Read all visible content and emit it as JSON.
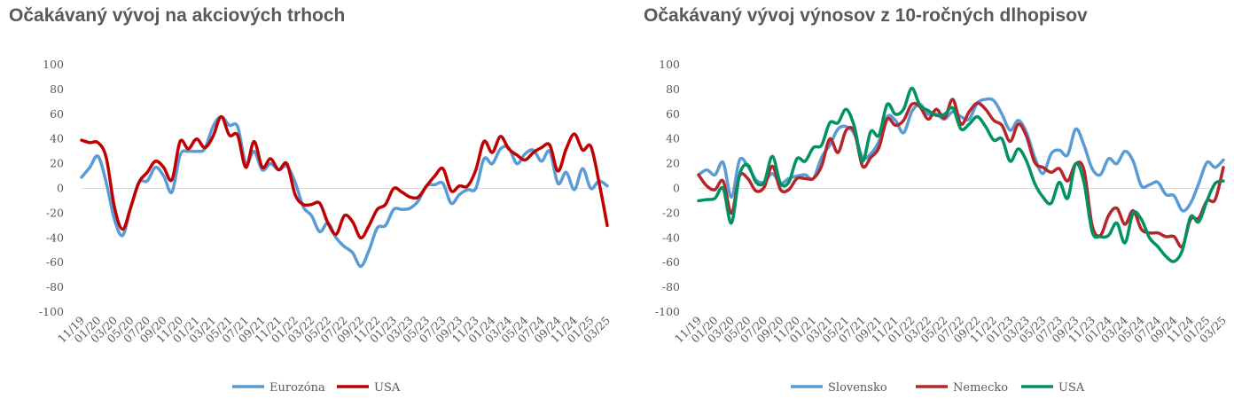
{
  "chart_data": [
    {
      "type": "line",
      "title": "Očakávaný vývoj na akciových trhoch",
      "ylim": [
        -100,
        100
      ],
      "yticks": [
        100,
        80,
        60,
        40,
        20,
        0,
        -20,
        -40,
        -60,
        -80,
        -100
      ],
      "grid": false,
      "legend": "bottom",
      "xtick_labels": [
        "11/19",
        "01/20",
        "03/20",
        "05/20",
        "07/20",
        "09/20",
        "11/20",
        "01/21",
        "03/21",
        "05/21",
        "07/21",
        "09/21",
        "11/21",
        "01/22",
        "03/22",
        "05/22",
        "07/22",
        "09/22",
        "11/22",
        "01/23",
        "03/23",
        "05/23",
        "07/23",
        "09/23",
        "11/23",
        "01/24",
        "03/24",
        "05/24",
        "07/24",
        "09/24",
        "11/24",
        "01/25",
        "03/25"
      ],
      "series": [
        {
          "name": "Eurozóna",
          "color": "#5B9BD5",
          "values": [
            9,
            17,
            26,
            5,
            -25,
            -38,
            -15,
            5,
            6,
            17,
            10,
            -3,
            27,
            30,
            30,
            32,
            50,
            58,
            51,
            50,
            20,
            30,
            15,
            20,
            15,
            18,
            5,
            -15,
            -22,
            -35,
            -28,
            -40,
            -47,
            -52,
            -63,
            -50,
            -32,
            -30,
            -17,
            -17,
            -16,
            -10,
            2,
            3,
            4,
            -12,
            -5,
            -1,
            0,
            24,
            20,
            32,
            33,
            20,
            28,
            31,
            22,
            30,
            4,
            13,
            -1,
            16,
            0,
            6,
            2
          ]
        },
        {
          "name": "USA",
          "color": "#C00000",
          "values": [
            39,
            37,
            37,
            25,
            -15,
            -33,
            -15,
            5,
            13,
            22,
            17,
            7,
            38,
            32,
            40,
            33,
            42,
            58,
            43,
            43,
            17,
            38,
            17,
            24,
            15,
            20,
            -5,
            -13,
            -13,
            -12,
            -28,
            -37,
            -22,
            -27,
            -40,
            -30,
            -17,
            -13,
            0,
            -3,
            -7,
            -7,
            2,
            10,
            16,
            -2,
            2,
            2,
            15,
            38,
            29,
            42,
            32,
            27,
            23,
            29,
            33,
            35,
            14,
            32,
            44,
            31,
            34,
            5,
            -30
          ]
        }
      ]
    },
    {
      "type": "line",
      "title": "Očakávaný vývoj výnosov z 10-ročných dlhopisov",
      "ylim": [
        -100,
        100
      ],
      "yticks": [
        100,
        80,
        60,
        40,
        20,
        0,
        -20,
        -40,
        -60,
        -80,
        -100
      ],
      "grid": false,
      "legend": "bottom",
      "xtick_labels": [
        "11/19",
        "01/20",
        "03/20",
        "05/20",
        "07/20",
        "09/20",
        "11/20",
        "01/21",
        "03/21",
        "05/21",
        "07/21",
        "09/21",
        "11/21",
        "01/22",
        "03/22",
        "05/22",
        "07/22",
        "09/22",
        "11/22",
        "01/23",
        "03/23",
        "05/23",
        "07/23",
        "09/23",
        "11/23",
        "01/24",
        "03/24",
        "05/24",
        "07/24",
        "09/24",
        "11/24",
        "01/25",
        "03/25"
      ],
      "series": [
        {
          "name": "Slovensko",
          "color": "#5B9BD5",
          "values": [
            11,
            15,
            11,
            21,
            -7,
            23,
            18,
            7,
            5,
            12,
            4,
            8,
            10,
            11,
            8,
            25,
            35,
            48,
            50,
            44,
            25,
            28,
            38,
            58,
            55,
            45,
            62,
            68,
            60,
            60,
            56,
            62,
            58,
            56,
            69,
            72,
            71,
            60,
            47,
            55,
            45,
            25,
            12,
            28,
            31,
            27,
            48,
            35,
            16,
            11,
            24,
            20,
            30,
            22,
            2,
            3,
            5,
            -5,
            -6,
            -18,
            -12,
            4,
            21,
            17,
            23
          ]
        },
        {
          "name": "Nemecko",
          "color": "#B5262C",
          "values": [
            11,
            2,
            -1,
            6,
            -20,
            10,
            8,
            -2,
            1,
            18,
            -1,
            -1,
            8,
            8,
            8,
            18,
            40,
            29,
            47,
            46,
            18,
            25,
            33,
            56,
            51,
            55,
            68,
            66,
            56,
            64,
            57,
            72,
            52,
            62,
            69,
            64,
            55,
            51,
            38,
            52,
            42,
            21,
            17,
            13,
            16,
            6,
            20,
            15,
            -30,
            -38,
            -22,
            -16,
            -29,
            -18,
            -33,
            -36,
            -36,
            -39,
            -39,
            -47,
            -25,
            -24,
            -10,
            -9,
            17
          ]
        },
        {
          "name": "USA",
          "color": "#00935F",
          "values": [
            -10,
            -9,
            -8,
            0,
            -28,
            11,
            19,
            5,
            5,
            26,
            4,
            5,
            24,
            22,
            33,
            35,
            53,
            53,
            64,
            50,
            22,
            46,
            43,
            68,
            60,
            64,
            81,
            67,
            63,
            59,
            60,
            65,
            48,
            52,
            58,
            50,
            39,
            40,
            22,
            32,
            22,
            4,
            -7,
            -12,
            5,
            -8,
            20,
            5,
            -35,
            -39,
            -38,
            -28,
            -44,
            -20,
            -25,
            -40,
            -47,
            -55,
            -59,
            -50,
            -23,
            -27,
            -10,
            4,
            6
          ]
        }
      ]
    }
  ]
}
